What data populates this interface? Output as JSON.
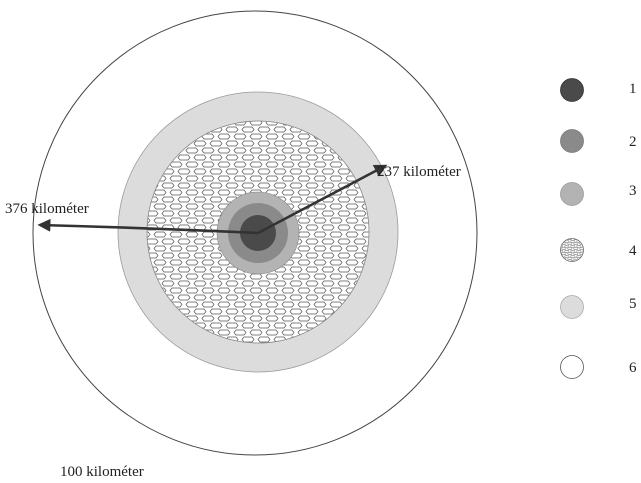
{
  "labels": {
    "radius_outer": "376 kilométer",
    "radius_inner": "237 kilométer",
    "bottom": "100 kilométer"
  },
  "legend": [
    {
      "number": "1",
      "fill": "#4a4a4a",
      "pattern": false
    },
    {
      "number": "2",
      "fill": "#8a8a8a",
      "pattern": false
    },
    {
      "number": "3",
      "fill": "#b3b3b3",
      "pattern": false
    },
    {
      "number": "4",
      "fill": "#ffffff",
      "pattern": true
    },
    {
      "number": "5",
      "fill": "#dcdcdc",
      "pattern": false
    },
    {
      "number": "6",
      "fill": "#ffffff",
      "pattern": false
    }
  ],
  "colors": {
    "outline": "#444444",
    "arrow": "#333333",
    "hatch": "#555555"
  }
}
